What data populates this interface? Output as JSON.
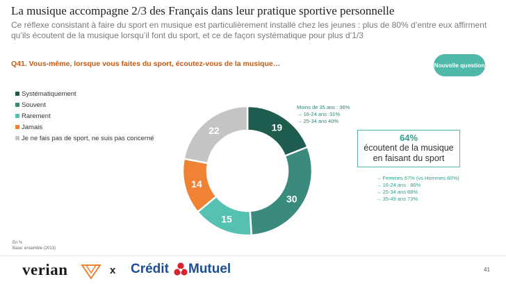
{
  "header": {
    "title": "La musique accompagne 2/3 des Français dans leur pratique sportive personnelle",
    "subtitle": "Ce réflexe consistant à faire du sport en musique est particulièrement installé chez les jeunes : plus de 80% d’entre eux affirment qu’ils écoutent de la musique lorsqu’il font du sport, et ce de façon systématique pour plus d’1/3"
  },
  "question": "Q41. Vous-même, lorsque vous faites du sport, écoutez-vous de la musique…",
  "badge": "Nouvelle question",
  "chart_data": {
    "type": "pie",
    "style": "donut",
    "categories": [
      "Systématiquement",
      "Souvent",
      "Rarement",
      "Jamais",
      "Je ne fais pas de sport, ne suis pas concerné"
    ],
    "values": [
      19,
      30,
      15,
      14,
      22
    ],
    "colors": [
      "#1e5c50",
      "#3b8a7e",
      "#55c1b1",
      "#f08234",
      "#c4c4c4"
    ],
    "legend_position": "left"
  },
  "annotations": {
    "top": [
      "Moins de 35 ans : 36%",
      "→ 16-24 ans :31%",
      "→ 25-34 ans 40%"
    ],
    "highlight_pct": "64%",
    "highlight_text": "écoutent de la musique en faisant du sport",
    "bottom": [
      "→ Femmes 67% (vs Hommes 60%)",
      "→ 16-24 ans : 86%",
      "→ 25-34 ans 88%",
      "→ 35-49 ans 73%"
    ]
  },
  "footnote": [
    "En %",
    "Base: ensemble (2013)"
  ],
  "footer": {
    "logo_left": "verian",
    "separator": "x",
    "logo_right_a": "Crédit",
    "logo_right_b": "Mutuel",
    "page_number": "41"
  }
}
